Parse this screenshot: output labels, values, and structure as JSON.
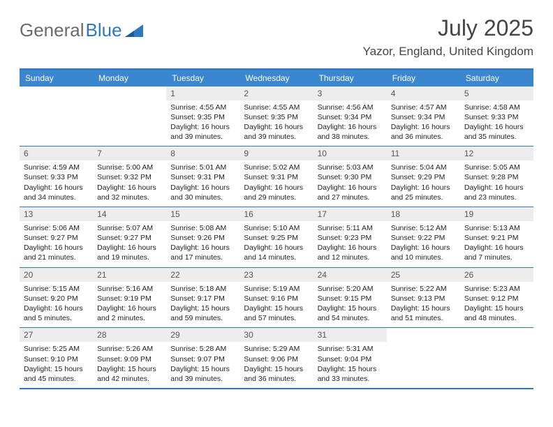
{
  "logo": {
    "text_a": "General",
    "text_b": "Blue"
  },
  "title": "July 2025",
  "location": "Yazor, England, United Kingdom",
  "colors": {
    "header_bg": "#3a86cf",
    "border": "#2f78bd",
    "daynum_bg": "#ededed",
    "text": "#222222",
    "title_text": "#454545",
    "logo_gray": "#6a6a6a"
  },
  "days_of_week": [
    "Sunday",
    "Monday",
    "Tuesday",
    "Wednesday",
    "Thursday",
    "Friday",
    "Saturday"
  ],
  "weeks": [
    [
      null,
      null,
      {
        "n": "1",
        "sunrise": "Sunrise: 4:55 AM",
        "sunset": "Sunset: 9:35 PM",
        "daylight": "Daylight: 16 hours and 39 minutes."
      },
      {
        "n": "2",
        "sunrise": "Sunrise: 4:55 AM",
        "sunset": "Sunset: 9:35 PM",
        "daylight": "Daylight: 16 hours and 39 minutes."
      },
      {
        "n": "3",
        "sunrise": "Sunrise: 4:56 AM",
        "sunset": "Sunset: 9:34 PM",
        "daylight": "Daylight: 16 hours and 38 minutes."
      },
      {
        "n": "4",
        "sunrise": "Sunrise: 4:57 AM",
        "sunset": "Sunset: 9:34 PM",
        "daylight": "Daylight: 16 hours and 36 minutes."
      },
      {
        "n": "5",
        "sunrise": "Sunrise: 4:58 AM",
        "sunset": "Sunset: 9:33 PM",
        "daylight": "Daylight: 16 hours and 35 minutes."
      }
    ],
    [
      {
        "n": "6",
        "sunrise": "Sunrise: 4:59 AM",
        "sunset": "Sunset: 9:33 PM",
        "daylight": "Daylight: 16 hours and 34 minutes."
      },
      {
        "n": "7",
        "sunrise": "Sunrise: 5:00 AM",
        "sunset": "Sunset: 9:32 PM",
        "daylight": "Daylight: 16 hours and 32 minutes."
      },
      {
        "n": "8",
        "sunrise": "Sunrise: 5:01 AM",
        "sunset": "Sunset: 9:31 PM",
        "daylight": "Daylight: 16 hours and 30 minutes."
      },
      {
        "n": "9",
        "sunrise": "Sunrise: 5:02 AM",
        "sunset": "Sunset: 9:31 PM",
        "daylight": "Daylight: 16 hours and 29 minutes."
      },
      {
        "n": "10",
        "sunrise": "Sunrise: 5:03 AM",
        "sunset": "Sunset: 9:30 PM",
        "daylight": "Daylight: 16 hours and 27 minutes."
      },
      {
        "n": "11",
        "sunrise": "Sunrise: 5:04 AM",
        "sunset": "Sunset: 9:29 PM",
        "daylight": "Daylight: 16 hours and 25 minutes."
      },
      {
        "n": "12",
        "sunrise": "Sunrise: 5:05 AM",
        "sunset": "Sunset: 9:28 PM",
        "daylight": "Daylight: 16 hours and 23 minutes."
      }
    ],
    [
      {
        "n": "13",
        "sunrise": "Sunrise: 5:06 AM",
        "sunset": "Sunset: 9:27 PM",
        "daylight": "Daylight: 16 hours and 21 minutes."
      },
      {
        "n": "14",
        "sunrise": "Sunrise: 5:07 AM",
        "sunset": "Sunset: 9:27 PM",
        "daylight": "Daylight: 16 hours and 19 minutes."
      },
      {
        "n": "15",
        "sunrise": "Sunrise: 5:08 AM",
        "sunset": "Sunset: 9:26 PM",
        "daylight": "Daylight: 16 hours and 17 minutes."
      },
      {
        "n": "16",
        "sunrise": "Sunrise: 5:10 AM",
        "sunset": "Sunset: 9:25 PM",
        "daylight": "Daylight: 16 hours and 14 minutes."
      },
      {
        "n": "17",
        "sunrise": "Sunrise: 5:11 AM",
        "sunset": "Sunset: 9:23 PM",
        "daylight": "Daylight: 16 hours and 12 minutes."
      },
      {
        "n": "18",
        "sunrise": "Sunrise: 5:12 AM",
        "sunset": "Sunset: 9:22 PM",
        "daylight": "Daylight: 16 hours and 10 minutes."
      },
      {
        "n": "19",
        "sunrise": "Sunrise: 5:13 AM",
        "sunset": "Sunset: 9:21 PM",
        "daylight": "Daylight: 16 hours and 7 minutes."
      }
    ],
    [
      {
        "n": "20",
        "sunrise": "Sunrise: 5:15 AM",
        "sunset": "Sunset: 9:20 PM",
        "daylight": "Daylight: 16 hours and 5 minutes."
      },
      {
        "n": "21",
        "sunrise": "Sunrise: 5:16 AM",
        "sunset": "Sunset: 9:19 PM",
        "daylight": "Daylight: 16 hours and 2 minutes."
      },
      {
        "n": "22",
        "sunrise": "Sunrise: 5:18 AM",
        "sunset": "Sunset: 9:17 PM",
        "daylight": "Daylight: 15 hours and 59 minutes."
      },
      {
        "n": "23",
        "sunrise": "Sunrise: 5:19 AM",
        "sunset": "Sunset: 9:16 PM",
        "daylight": "Daylight: 15 hours and 57 minutes."
      },
      {
        "n": "24",
        "sunrise": "Sunrise: 5:20 AM",
        "sunset": "Sunset: 9:15 PM",
        "daylight": "Daylight: 15 hours and 54 minutes."
      },
      {
        "n": "25",
        "sunrise": "Sunrise: 5:22 AM",
        "sunset": "Sunset: 9:13 PM",
        "daylight": "Daylight: 15 hours and 51 minutes."
      },
      {
        "n": "26",
        "sunrise": "Sunrise: 5:23 AM",
        "sunset": "Sunset: 9:12 PM",
        "daylight": "Daylight: 15 hours and 48 minutes."
      }
    ],
    [
      {
        "n": "27",
        "sunrise": "Sunrise: 5:25 AM",
        "sunset": "Sunset: 9:10 PM",
        "daylight": "Daylight: 15 hours and 45 minutes."
      },
      {
        "n": "28",
        "sunrise": "Sunrise: 5:26 AM",
        "sunset": "Sunset: 9:09 PM",
        "daylight": "Daylight: 15 hours and 42 minutes."
      },
      {
        "n": "29",
        "sunrise": "Sunrise: 5:28 AM",
        "sunset": "Sunset: 9:07 PM",
        "daylight": "Daylight: 15 hours and 39 minutes."
      },
      {
        "n": "30",
        "sunrise": "Sunrise: 5:29 AM",
        "sunset": "Sunset: 9:06 PM",
        "daylight": "Daylight: 15 hours and 36 minutes."
      },
      {
        "n": "31",
        "sunrise": "Sunrise: 5:31 AM",
        "sunset": "Sunset: 9:04 PM",
        "daylight": "Daylight: 15 hours and 33 minutes."
      },
      null,
      null
    ]
  ]
}
